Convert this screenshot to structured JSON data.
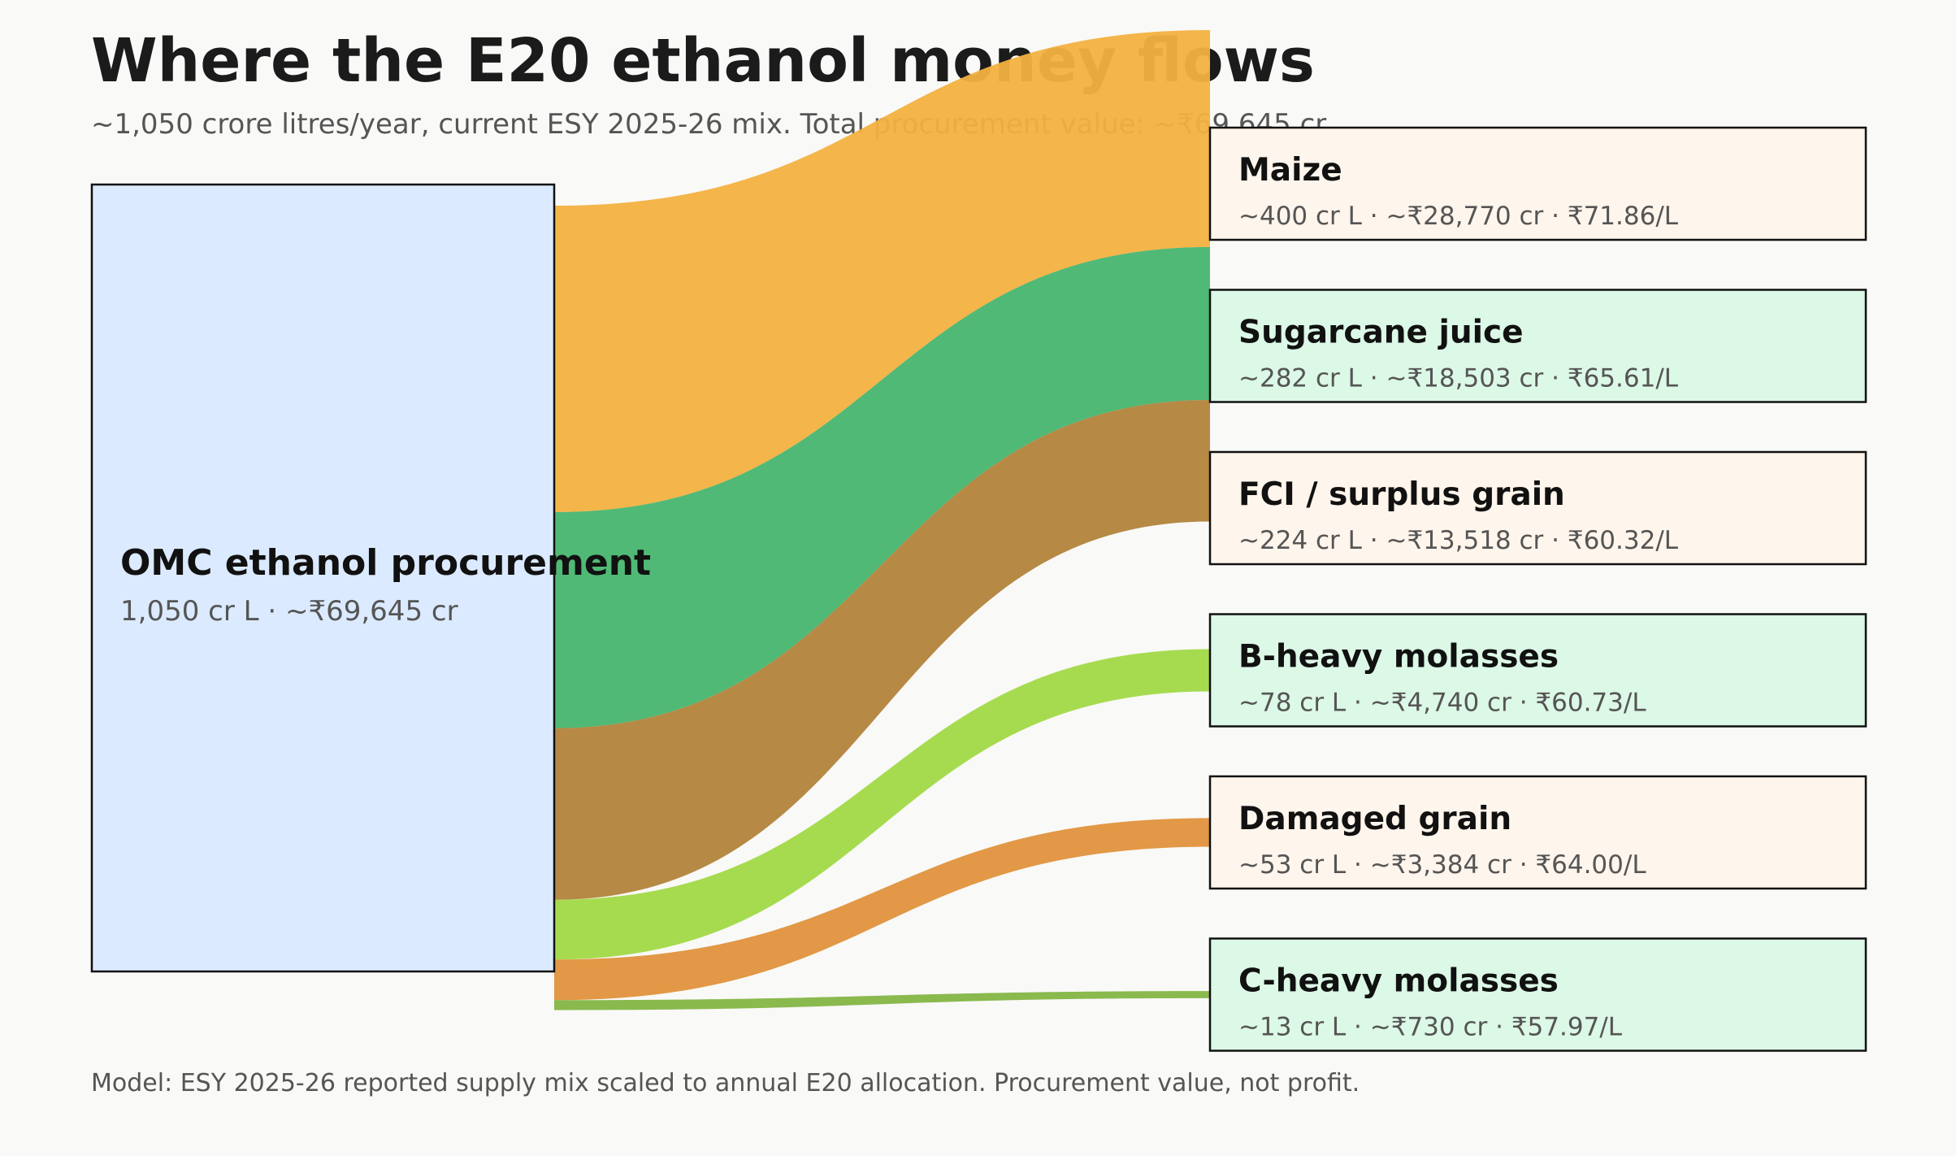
{
  "title": "Where the E20 ethanol money flows",
  "subtitle": "~1,050 crore litres/year, current ESY 2025-26 mix. Total procurement value: ~₹69,645 cr",
  "footnote": "Model: ESY 2025-26 reported supply mix scaled to annual E20 allocation. Procurement value, not profit.",
  "chart_data": {
    "type": "sankey",
    "source": {
      "label": "OMC ethanol procurement",
      "detail": "1,050 cr L · ~₹69,645 cr",
      "volume_cr_l": 1050,
      "value_cr": 69645,
      "color": "#dbeafe"
    },
    "targets": [
      {
        "label": "Maize",
        "detail": "~400 cr L · ~₹28,770 cr · ₹71.86/L",
        "volume_cr_l": 400,
        "value_cr": 28770,
        "price_per_l": 71.86,
        "color": "#f3b140",
        "box_color": "#fef5ec"
      },
      {
        "label": "Sugarcane juice",
        "detail": "~282 cr L · ~₹18,503 cr · ₹65.61/L",
        "volume_cr_l": 282,
        "value_cr": 18503,
        "price_per_l": 65.61,
        "color": "#47b56f",
        "box_color": "#dcf8e6"
      },
      {
        "label": "FCI / surplus grain",
        "detail": "~224 cr L · ~₹13,518 cr · ₹60.32/L",
        "volume_cr_l": 224,
        "value_cr": 13518,
        "price_per_l": 60.32,
        "color": "#b2833b",
        "box_color": "#fef5ec"
      },
      {
        "label": "B-heavy molasses",
        "detail": "~78 cr L · ~₹4,740 cr · ₹60.73/L",
        "volume_cr_l": 78,
        "value_cr": 4740,
        "price_per_l": 60.73,
        "color": "#a1d946",
        "box_color": "#dcf8e6"
      },
      {
        "label": "Damaged grain",
        "detail": "~53 cr L · ~₹3,384 cr · ₹64.00/L",
        "volume_cr_l": 53,
        "value_cr": 3384,
        "price_per_l": 64.0,
        "color": "#e0923c",
        "box_color": "#fef5ec"
      },
      {
        "label": "C-heavy molasses",
        "detail": "~13 cr L · ~₹730 cr · ₹57.97/L",
        "volume_cr_l": 13,
        "value_cr": 730,
        "price_per_l": 57.97,
        "color": "#84b544",
        "box_color": "#dcf8e6"
      }
    ]
  }
}
